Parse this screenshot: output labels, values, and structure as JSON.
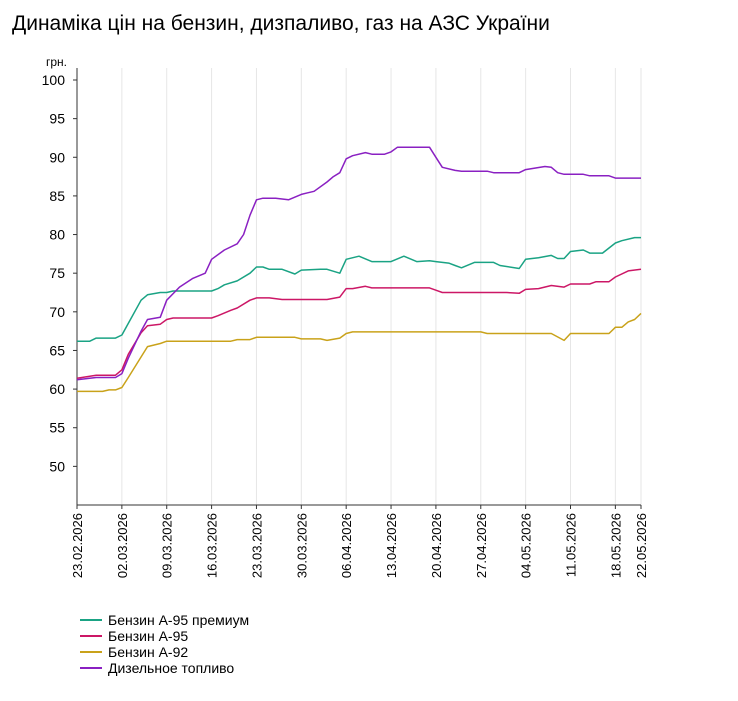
{
  "chart_data": {
    "type": "line",
    "title": "Динаміка цін на бензин, дизпаливо, газ на АЗС України",
    "ylabel": "грн.",
    "ylim": [
      45,
      100
    ],
    "yticks": [
      50,
      55,
      60,
      65,
      70,
      75,
      80,
      85,
      90,
      95,
      100
    ],
    "xlim": [
      "2026-02-23",
      "2026-05-22"
    ],
    "xticks": [
      "23.02.2026",
      "02.03.2026",
      "09.03.2026",
      "16.03.2026",
      "23.03.2026",
      "30.03.2026",
      "06.04.2026",
      "13.04.2026",
      "20.04.2026",
      "27.04.2026",
      "04.05.2026",
      "11.05.2026",
      "18.05.2026",
      "22.05.2026"
    ],
    "grid": {
      "vertical": true,
      "horizontal": false
    },
    "legend_position": "bottom-left",
    "series": [
      {
        "name": "Бензин А-95 премиум",
        "color": "#1aa384",
        "points": [
          [
            "2026-02-23",
            66.2
          ],
          [
            "2026-02-25",
            66.2
          ],
          [
            "2026-02-26",
            66.6
          ],
          [
            "2026-03-01",
            66.6
          ],
          [
            "2026-03-02",
            67.0
          ],
          [
            "2026-03-03",
            68.5
          ],
          [
            "2026-03-05",
            71.5
          ],
          [
            "2026-03-06",
            72.2
          ],
          [
            "2026-03-08",
            72.5
          ],
          [
            "2026-03-09",
            72.5
          ],
          [
            "2026-03-10",
            72.7
          ],
          [
            "2026-03-16",
            72.7
          ],
          [
            "2026-03-17",
            73.0
          ],
          [
            "2026-03-18",
            73.5
          ],
          [
            "2026-03-20",
            74.0
          ],
          [
            "2026-03-22",
            75.0
          ],
          [
            "2026-03-23",
            75.8
          ],
          [
            "2026-03-24",
            75.8
          ],
          [
            "2026-03-25",
            75.5
          ],
          [
            "2026-03-27",
            75.5
          ],
          [
            "2026-03-29",
            74.9
          ],
          [
            "2026-03-30",
            75.4
          ],
          [
            "2026-04-02",
            75.5
          ],
          [
            "2026-04-03",
            75.5
          ],
          [
            "2026-04-05",
            75.0
          ],
          [
            "2026-04-06",
            76.8
          ],
          [
            "2026-04-08",
            77.2
          ],
          [
            "2026-04-10",
            76.5
          ],
          [
            "2026-04-13",
            76.5
          ],
          [
            "2026-04-15",
            77.2
          ],
          [
            "2026-04-17",
            76.5
          ],
          [
            "2026-04-19",
            76.6
          ],
          [
            "2026-04-20",
            76.5
          ],
          [
            "2026-04-22",
            76.3
          ],
          [
            "2026-04-23",
            76.0
          ],
          [
            "2026-04-24",
            75.7
          ],
          [
            "2026-04-26",
            76.4
          ],
          [
            "2026-04-29",
            76.4
          ],
          [
            "2026-04-30",
            76.0
          ],
          [
            "2026-05-03",
            75.6
          ],
          [
            "2026-05-04",
            76.8
          ],
          [
            "2026-05-06",
            77.0
          ],
          [
            "2026-05-08",
            77.3
          ],
          [
            "2026-05-09",
            76.9
          ],
          [
            "2026-05-10",
            76.9
          ],
          [
            "2026-05-11",
            77.8
          ],
          [
            "2026-05-13",
            78.0
          ],
          [
            "2026-05-14",
            77.6
          ],
          [
            "2026-05-16",
            77.6
          ],
          [
            "2026-05-18",
            78.9
          ],
          [
            "2026-05-19",
            79.2
          ],
          [
            "2026-05-21",
            79.6
          ],
          [
            "2026-05-22",
            79.6
          ]
        ]
      },
      {
        "name": "Бензин А-95",
        "color": "#cc1766",
        "points": [
          [
            "2026-02-23",
            61.4
          ],
          [
            "2026-02-26",
            61.8
          ],
          [
            "2026-03-01",
            61.8
          ],
          [
            "2026-03-02",
            62.5
          ],
          [
            "2026-03-03",
            64.5
          ],
          [
            "2026-03-05",
            67.3
          ],
          [
            "2026-03-06",
            68.2
          ],
          [
            "2026-03-08",
            68.4
          ],
          [
            "2026-03-09",
            69.0
          ],
          [
            "2026-03-10",
            69.2
          ],
          [
            "2026-03-16",
            69.2
          ],
          [
            "2026-03-17",
            69.5
          ],
          [
            "2026-03-19",
            70.2
          ],
          [
            "2026-03-20",
            70.5
          ],
          [
            "2026-03-22",
            71.5
          ],
          [
            "2026-03-23",
            71.8
          ],
          [
            "2026-03-25",
            71.8
          ],
          [
            "2026-03-27",
            71.6
          ],
          [
            "2026-04-03",
            71.6
          ],
          [
            "2026-04-05",
            71.9
          ],
          [
            "2026-04-06",
            73.0
          ],
          [
            "2026-04-07",
            73.0
          ],
          [
            "2026-04-09",
            73.3
          ],
          [
            "2026-04-10",
            73.1
          ],
          [
            "2026-04-19",
            73.1
          ],
          [
            "2026-04-20",
            72.8
          ],
          [
            "2026-04-21",
            72.5
          ],
          [
            "2026-05-01",
            72.5
          ],
          [
            "2026-05-03",
            72.4
          ],
          [
            "2026-05-04",
            72.9
          ],
          [
            "2026-05-06",
            73.0
          ],
          [
            "2026-05-08",
            73.4
          ],
          [
            "2026-05-10",
            73.2
          ],
          [
            "2026-05-11",
            73.6
          ],
          [
            "2026-05-14",
            73.6
          ],
          [
            "2026-05-15",
            73.9
          ],
          [
            "2026-05-17",
            73.9
          ],
          [
            "2026-05-18",
            74.5
          ],
          [
            "2026-05-20",
            75.3
          ],
          [
            "2026-05-22",
            75.5
          ]
        ]
      },
      {
        "name": "Бензин А-92",
        "color": "#c9a21a",
        "points": [
          [
            "2026-02-23",
            59.7
          ],
          [
            "2026-02-27",
            59.7
          ],
          [
            "2026-02-28",
            59.9
          ],
          [
            "2026-03-01",
            59.9
          ],
          [
            "2026-03-02",
            60.2
          ],
          [
            "2026-03-03",
            61.5
          ],
          [
            "2026-03-06",
            65.5
          ],
          [
            "2026-03-08",
            65.9
          ],
          [
            "2026-03-09",
            66.2
          ],
          [
            "2026-03-19",
            66.2
          ],
          [
            "2026-03-20",
            66.4
          ],
          [
            "2026-03-22",
            66.4
          ],
          [
            "2026-03-23",
            66.7
          ],
          [
            "2026-03-29",
            66.7
          ],
          [
            "2026-03-30",
            66.5
          ],
          [
            "2026-04-02",
            66.5
          ],
          [
            "2026-04-03",
            66.3
          ],
          [
            "2026-04-05",
            66.6
          ],
          [
            "2026-04-06",
            67.2
          ],
          [
            "2026-04-07",
            67.4
          ],
          [
            "2026-04-27",
            67.4
          ],
          [
            "2026-04-28",
            67.2
          ],
          [
            "2026-05-08",
            67.2
          ],
          [
            "2026-05-10",
            66.3
          ],
          [
            "2026-05-11",
            67.2
          ],
          [
            "2026-05-17",
            67.2
          ],
          [
            "2026-05-18",
            68.0
          ],
          [
            "2026-05-19",
            68.0
          ],
          [
            "2026-05-20",
            68.7
          ],
          [
            "2026-05-21",
            69.0
          ],
          [
            "2026-05-22",
            69.8
          ]
        ]
      },
      {
        "name": "Дизельное топливо",
        "color": "#8a20c2",
        "points": [
          [
            "2026-02-23",
            61.2
          ],
          [
            "2026-02-26",
            61.5
          ],
          [
            "2026-03-01",
            61.5
          ],
          [
            "2026-03-02",
            62.0
          ],
          [
            "2026-03-03",
            64.0
          ],
          [
            "2026-03-05",
            67.5
          ],
          [
            "2026-03-06",
            69.0
          ],
          [
            "2026-03-08",
            69.3
          ],
          [
            "2026-03-09",
            71.5
          ],
          [
            "2026-03-11",
            73.2
          ],
          [
            "2026-03-13",
            74.3
          ],
          [
            "2026-03-15",
            75.0
          ],
          [
            "2026-03-16",
            76.8
          ],
          [
            "2026-03-18",
            78.0
          ],
          [
            "2026-03-20",
            78.8
          ],
          [
            "2026-03-21",
            80.0
          ],
          [
            "2026-03-22",
            82.5
          ],
          [
            "2026-03-23",
            84.5
          ],
          [
            "2026-03-24",
            84.7
          ],
          [
            "2026-03-26",
            84.7
          ],
          [
            "2026-03-28",
            84.5
          ],
          [
            "2026-03-30",
            85.2
          ],
          [
            "2026-03-31",
            85.4
          ],
          [
            "2026-04-01",
            85.6
          ],
          [
            "2026-04-03",
            86.8
          ],
          [
            "2026-04-04",
            87.5
          ],
          [
            "2026-04-05",
            88.0
          ],
          [
            "2026-04-06",
            89.8
          ],
          [
            "2026-04-07",
            90.2
          ],
          [
            "2026-04-09",
            90.6
          ],
          [
            "2026-04-10",
            90.4
          ],
          [
            "2026-04-12",
            90.4
          ],
          [
            "2026-04-13",
            90.7
          ],
          [
            "2026-04-14",
            91.3
          ],
          [
            "2026-04-18",
            91.3
          ],
          [
            "2026-04-19",
            91.3
          ],
          [
            "2026-04-20",
            90.0
          ],
          [
            "2026-04-21",
            88.7
          ],
          [
            "2026-04-23",
            88.3
          ],
          [
            "2026-04-24",
            88.2
          ],
          [
            "2026-04-28",
            88.2
          ],
          [
            "2026-04-29",
            88.0
          ],
          [
            "2026-05-03",
            88.0
          ],
          [
            "2026-05-04",
            88.4
          ],
          [
            "2026-05-07",
            88.8
          ],
          [
            "2026-05-08",
            88.7
          ],
          [
            "2026-05-09",
            88.0
          ],
          [
            "2026-05-10",
            87.8
          ],
          [
            "2026-05-13",
            87.8
          ],
          [
            "2026-05-14",
            87.6
          ],
          [
            "2026-05-17",
            87.6
          ],
          [
            "2026-05-18",
            87.3
          ],
          [
            "2026-05-22",
            87.3
          ]
        ]
      }
    ]
  }
}
